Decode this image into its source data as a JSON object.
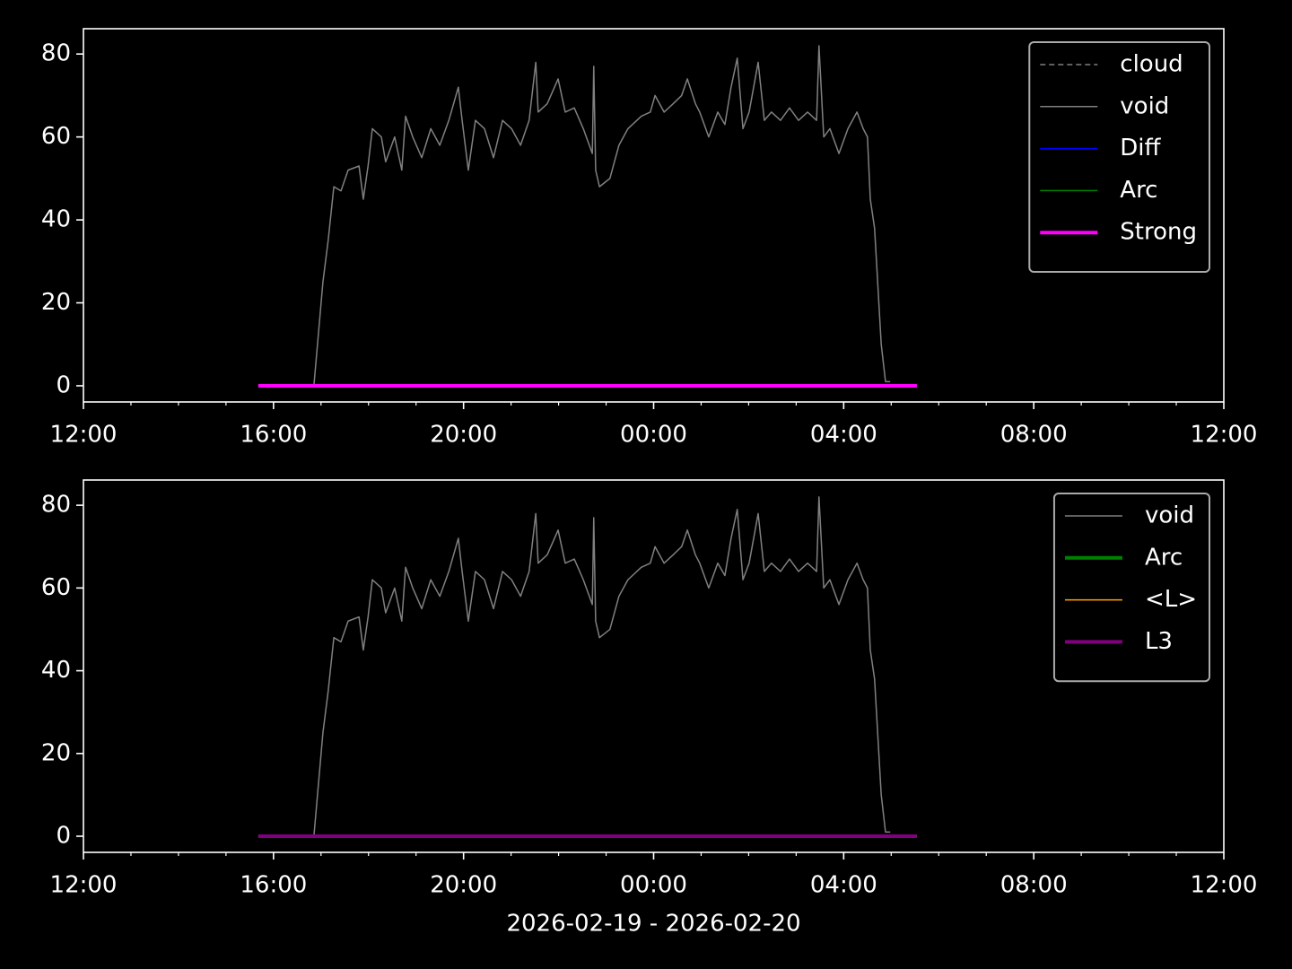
{
  "chart_data": [
    {
      "type": "line",
      "xlim": [
        12,
        36
      ],
      "xticks": [
        {
          "value": 12,
          "label": "12:00"
        },
        {
          "value": 16,
          "label": "16:00"
        },
        {
          "value": 20,
          "label": "20:00"
        },
        {
          "value": 24,
          "label": "00:00"
        },
        {
          "value": 28,
          "label": "04:00"
        },
        {
          "value": 32,
          "label": "08:00"
        },
        {
          "value": 36,
          "label": "12:00"
        }
      ],
      "xminorticks": [
        13,
        14,
        15,
        17,
        18,
        19,
        21,
        22,
        23,
        25,
        26,
        27,
        29,
        30,
        31,
        33,
        34,
        35
      ],
      "ylim": [
        -3.9,
        86.1
      ],
      "yticks": [
        0,
        20,
        40,
        60,
        80
      ],
      "legend": "upper right",
      "series": [
        {
          "name": "cloud",
          "color": "#808080",
          "dashed": true,
          "linewidth": 1.5,
          "x": [
            15.68,
            29.54
          ],
          "values": [
            0,
            0
          ]
        },
        {
          "name": "void",
          "color": "#808080",
          "linewidth": 1.5,
          "x": [
            16.85,
            17.04,
            17.15,
            17.27,
            17.42,
            17.57,
            17.8,
            17.89,
            17.99,
            18.08,
            18.27,
            18.36,
            18.55,
            18.7,
            18.78,
            18.93,
            19.12,
            19.31,
            19.5,
            19.69,
            19.89,
            19.97,
            20.1,
            20.25,
            20.44,
            20.63,
            20.82,
            21.01,
            21.2,
            21.38,
            21.52,
            21.57,
            21.76,
            21.99,
            22.14,
            22.33,
            22.52,
            22.71,
            22.74,
            22.78,
            22.86,
            23.08,
            23.27,
            23.46,
            23.74,
            23.93,
            24.03,
            24.22,
            24.41,
            24.59,
            24.71,
            24.88,
            24.97,
            25.16,
            25.35,
            25.5,
            25.63,
            25.76,
            25.88,
            26.01,
            26.2,
            26.33,
            26.48,
            26.67,
            26.86,
            27.05,
            27.24,
            27.43,
            27.48,
            27.58,
            27.71,
            27.9,
            28.09,
            28.28,
            28.41,
            28.5,
            28.56,
            28.65,
            28.79,
            28.88,
            28.98
          ],
          "values": [
            0,
            25,
            35,
            48,
            47,
            52,
            53,
            45,
            53,
            62,
            60,
            54,
            60,
            52,
            65,
            60,
            55,
            62,
            58,
            64,
            72,
            64,
            52,
            64,
            62,
            55,
            64,
            62,
            58,
            64,
            78,
            66,
            68,
            74,
            66,
            67,
            62,
            56,
            77,
            52,
            48,
            50,
            58,
            62,
            65,
            66,
            70,
            66,
            68,
            70,
            74,
            68,
            66,
            60,
            66,
            63,
            72,
            79,
            62,
            66,
            78,
            64,
            66,
            64,
            67,
            64,
            66,
            64,
            82,
            60,
            62,
            56,
            62,
            66,
            62,
            60,
            45,
            38,
            10,
            1,
            1
          ]
        },
        {
          "name": "Diff",
          "color": "#0000ff",
          "linewidth": 1.5,
          "x": [
            15.68,
            29.54
          ],
          "values": [
            0,
            0
          ]
        },
        {
          "name": "Arc",
          "color": "#008000",
          "linewidth": 1.5,
          "x": [
            15.68,
            29.54
          ],
          "values": [
            0,
            0
          ]
        },
        {
          "name": "Strong",
          "color": "#ff00ff",
          "linewidth": 4,
          "x": [
            15.68,
            29.54
          ],
          "values": [
            0,
            0
          ]
        }
      ]
    },
    {
      "type": "line",
      "xlim": [
        12,
        36
      ],
      "xticks": [
        {
          "value": 12,
          "label": "12:00"
        },
        {
          "value": 16,
          "label": "16:00"
        },
        {
          "value": 20,
          "label": "20:00"
        },
        {
          "value": 24,
          "label": "00:00"
        },
        {
          "value": 28,
          "label": "04:00"
        },
        {
          "value": 32,
          "label": "08:00"
        },
        {
          "value": 36,
          "label": "12:00"
        }
      ],
      "xminorticks": [
        13,
        14,
        15,
        17,
        18,
        19,
        21,
        22,
        23,
        25,
        26,
        27,
        29,
        30,
        31,
        33,
        34,
        35
      ],
      "ylim": [
        -3.9,
        86.1
      ],
      "yticks": [
        0,
        20,
        40,
        60,
        80
      ],
      "x_label": "2026-02-19 - 2026-02-20",
      "legend": "upper right",
      "series": [
        {
          "name": "void",
          "color": "#808080",
          "linewidth": 1.5,
          "x": [
            16.85,
            17.04,
            17.15,
            17.27,
            17.42,
            17.57,
            17.8,
            17.89,
            17.99,
            18.08,
            18.27,
            18.36,
            18.55,
            18.7,
            18.78,
            18.93,
            19.12,
            19.31,
            19.5,
            19.69,
            19.89,
            19.97,
            20.1,
            20.25,
            20.44,
            20.63,
            20.82,
            21.01,
            21.2,
            21.38,
            21.52,
            21.57,
            21.76,
            21.99,
            22.14,
            22.33,
            22.52,
            22.71,
            22.74,
            22.78,
            22.86,
            23.08,
            23.27,
            23.46,
            23.74,
            23.93,
            24.03,
            24.22,
            24.41,
            24.59,
            24.71,
            24.88,
            24.97,
            25.16,
            25.35,
            25.5,
            25.63,
            25.76,
            25.88,
            26.01,
            26.2,
            26.33,
            26.48,
            26.67,
            26.86,
            27.05,
            27.24,
            27.43,
            27.48,
            27.58,
            27.71,
            27.9,
            28.09,
            28.28,
            28.41,
            28.5,
            28.56,
            28.65,
            28.79,
            28.88,
            28.98
          ],
          "values": [
            0,
            25,
            35,
            48,
            47,
            52,
            53,
            45,
            53,
            62,
            60,
            54,
            60,
            52,
            65,
            60,
            55,
            62,
            58,
            64,
            72,
            64,
            52,
            64,
            62,
            55,
            64,
            62,
            58,
            64,
            78,
            66,
            68,
            74,
            66,
            67,
            62,
            56,
            77,
            52,
            48,
            50,
            58,
            62,
            65,
            66,
            70,
            66,
            68,
            70,
            74,
            68,
            66,
            60,
            66,
            63,
            72,
            79,
            62,
            66,
            78,
            64,
            66,
            64,
            67,
            64,
            66,
            64,
            82,
            60,
            62,
            56,
            62,
            66,
            62,
            60,
            45,
            38,
            10,
            1,
            1
          ]
        },
        {
          "name": "Arc",
          "color": "#008000",
          "linewidth": 4,
          "x": [
            15.68,
            29.54
          ],
          "values": [
            0,
            0
          ]
        },
        {
          "name": "<L>",
          "color": "#ffa500",
          "linewidth": 1.5,
          "x": [
            15.68,
            29.54
          ],
          "values": [
            0,
            0
          ]
        },
        {
          "name": "L3",
          "color": "#800080",
          "linewidth": 4,
          "x": [
            15.68,
            29.54
          ],
          "values": [
            0,
            0
          ]
        }
      ]
    }
  ]
}
